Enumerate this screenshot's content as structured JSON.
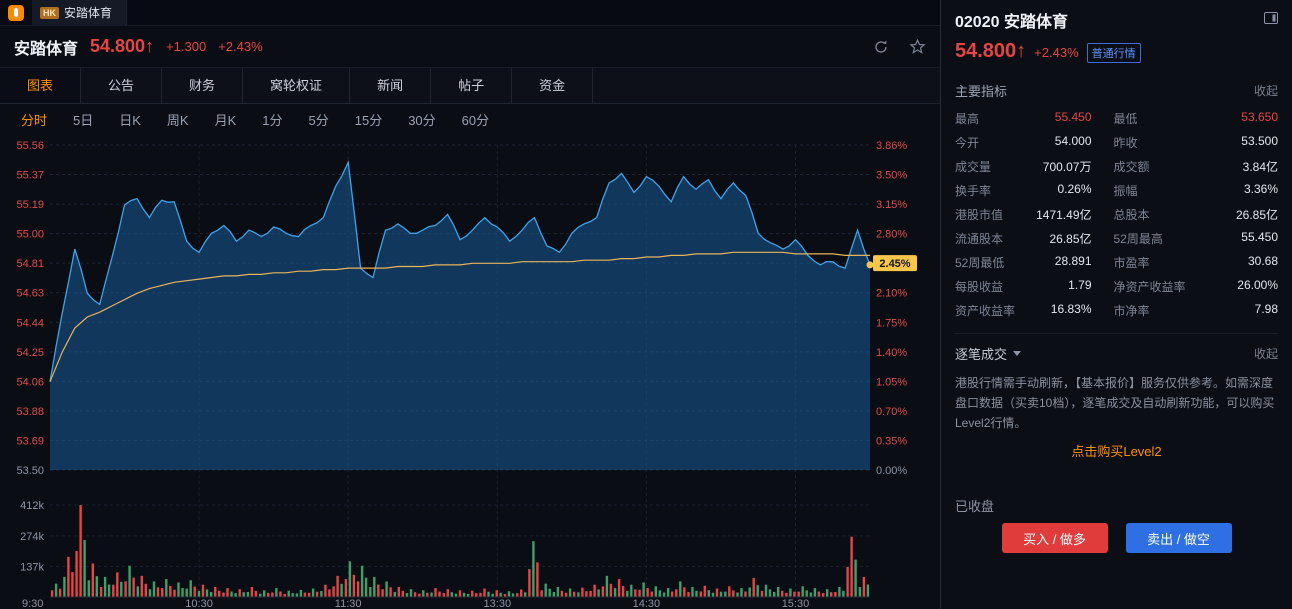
{
  "topbar": {
    "market_badge": "HK",
    "tab_title": "安踏体育"
  },
  "header": {
    "stock_name": "安踏体育",
    "price": "54.800",
    "arrow": "↑",
    "change": "+1.300",
    "change_pct": "+2.43%"
  },
  "tabs": {
    "main": [
      "图表",
      "公告",
      "财务",
      "窝轮权证",
      "新闻",
      "帖子",
      "资金"
    ],
    "period": [
      "分时",
      "5日",
      "日K",
      "周K",
      "月K",
      "1分",
      "5分",
      "15分",
      "30分",
      "60分"
    ]
  },
  "chart_data": {
    "type": "line",
    "title": "安踏体育 分时图",
    "ylim": [
      53.5,
      55.56
    ],
    "prev_close": 53.5,
    "price_labels": [
      "55.56",
      "55.37",
      "55.19",
      "55.00",
      "54.81",
      "54.63",
      "54.44",
      "54.25",
      "54.06",
      "53.88",
      "53.69",
      "53.50"
    ],
    "pct_labels": [
      "3.86%",
      "3.50%",
      "3.15%",
      "2.80%",
      "2.45%",
      "2.10%",
      "1.75%",
      "1.40%",
      "1.05%",
      "0.70%",
      "0.35%",
      "0.00%"
    ],
    "current_tag_index": 4,
    "current_pct_tag": "2.45%",
    "current_price": 54.8,
    "time_labels": [
      {
        "label": "9:30",
        "f": 0.0
      },
      {
        "label": "10:30",
        "f": 0.1818
      },
      {
        "label": "11:30",
        "f": 0.3636
      },
      {
        "label": "13:30",
        "f": 0.5455
      },
      {
        "label": "14:30",
        "f": 0.7273
      },
      {
        "label": "15:30",
        "f": 0.9091
      }
    ],
    "price": [
      54.06,
      54.5,
      54.9,
      54.62,
      54.55,
      54.85,
      55.18,
      55.22,
      55.1,
      55.21,
      55.2,
      54.95,
      54.88,
      55.0,
      55.05,
      54.95,
      55.02,
      54.98,
      55.04,
      55.0,
      54.98,
      55.05,
      55.1,
      55.3,
      55.45,
      54.78,
      54.72,
      55.02,
      55.06,
      55.0,
      55.02,
      55.05,
      55.12,
      54.96,
      55.02,
      55.1,
      55.04,
      54.95,
      55.02,
      55.1,
      54.92,
      54.88,
      55.0,
      55.06,
      55.1,
      55.32,
      55.38,
      55.26,
      55.36,
      55.3,
      55.2,
      55.36,
      55.28,
      55.34,
      55.22,
      55.32,
      55.24,
      55.0,
      54.94,
      54.9,
      54.96,
      54.86,
      54.8,
      54.82,
      54.78,
      55.02,
      54.8
    ],
    "avg": [
      54.06,
      54.25,
      54.4,
      54.47,
      54.5,
      54.54,
      54.58,
      54.62,
      54.65,
      54.67,
      54.69,
      54.7,
      54.71,
      54.72,
      54.73,
      54.73,
      54.74,
      54.74,
      54.75,
      54.75,
      54.76,
      54.76,
      54.77,
      54.77,
      54.78,
      54.78,
      54.78,
      54.78,
      54.79,
      54.79,
      54.79,
      54.8,
      54.8,
      54.8,
      54.81,
      54.81,
      54.81,
      54.81,
      54.82,
      54.82,
      54.82,
      54.82,
      54.82,
      54.83,
      54.83,
      54.83,
      54.84,
      54.84,
      54.85,
      54.85,
      54.86,
      54.86,
      54.87,
      54.87,
      54.87,
      54.88,
      54.88,
      54.88,
      54.88,
      54.88,
      54.87,
      54.87,
      54.87,
      54.87,
      54.86,
      54.86,
      54.86
    ],
    "volume_k": [
      60,
      180,
      412,
      150,
      90,
      110,
      140,
      95,
      70,
      80,
      65,
      75,
      55,
      45,
      40,
      35,
      45,
      30,
      40,
      28,
      32,
      38,
      55,
      95,
      160,
      140,
      90,
      70,
      45,
      35,
      30,
      40,
      35,
      30,
      28,
      38,
      30,
      26,
      34,
      250,
      60,
      45,
      38,
      42,
      55,
      95,
      80,
      55,
      65,
      48,
      40,
      70,
      45,
      50,
      38,
      48,
      40,
      85,
      55,
      45,
      38,
      48,
      40,
      35,
      45,
      270,
      90
    ],
    "volume_max_k": 412,
    "volume_labels": [
      {
        "label": "412k",
        "v": 412
      },
      {
        "label": "274k",
        "v": 274
      },
      {
        "label": "137k",
        "v": 137
      }
    ]
  },
  "panel": {
    "code": "02020",
    "name": "安踏体育",
    "price": "54.800",
    "arrow": "↑",
    "change_pct": "+2.43%",
    "quote_badge": "普通行情",
    "indicators_title": "主要指标",
    "collapse": "收起",
    "rows": [
      {
        "l1": "最高",
        "v1": "55.450",
        "l2": "最低",
        "v2": "53.650"
      },
      {
        "l1": "今开",
        "v1": "54.000",
        "l2": "昨收",
        "v2": "53.500"
      },
      {
        "l1": "成交量",
        "v1": "700.07万",
        "l2": "成交额",
        "v2": "3.84亿"
      },
      {
        "l1": "换手率",
        "v1": "0.26%",
        "l2": "振幅",
        "v2": "3.36%"
      },
      {
        "l1": "港股市值",
        "v1": "1471.49亿",
        "l2": "总股本",
        "v2": "26.85亿"
      },
      {
        "l1": "流通股本",
        "v1": "26.85亿",
        "l2": "52周最高",
        "v2": "55.450"
      },
      {
        "l1": "52周最低",
        "v1": "28.891",
        "l2": "市盈率",
        "v2": "30.68"
      },
      {
        "l1": "每股收益",
        "v1": "1.79",
        "l2": "净资产收益率",
        "v2": "26.00%"
      },
      {
        "l1": "资产收益率",
        "v1": "16.83%",
        "l2": "市净率",
        "v2": "7.98"
      }
    ],
    "ticks_title": "逐笔成交",
    "ticks_collapse": "收起",
    "notice": "港股行情需手动刷新，【基本报价】服务仅供参考。如需深度盘口数据（买卖10档），逐笔成交及自动刷新功能，可以购买Level2行情。",
    "level2_link": "点击购买Level2",
    "market_status": "已收盘",
    "buy_btn": "买入 / 做多",
    "sell_btn": "卖出 / 做空"
  },
  "colors": {
    "up": "#e64545",
    "down": "#3fa06a",
    "accent": "#ff9000",
    "line_blue": "#3fa3e8",
    "avg_orange": "#e8b45c",
    "tag_yellow": "#f7c64b",
    "btn_blue": "#2e6fe3"
  }
}
